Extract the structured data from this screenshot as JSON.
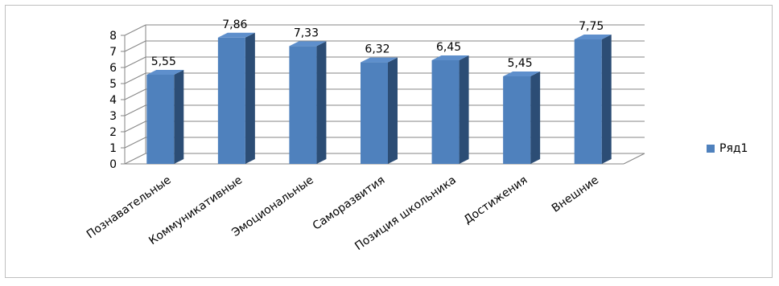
{
  "chart_data": {
    "type": "bar",
    "categories": [
      "Познавательные",
      "Коммуникативные",
      "Эмоциональные",
      "Саморазвития",
      "Позиция школьника",
      "Достижения",
      "Внешние"
    ],
    "series": [
      {
        "name": "Ряд1",
        "values": [
          5.55,
          7.86,
          7.33,
          6.32,
          6.45,
          5.45,
          7.75
        ],
        "labels": [
          "5,55",
          "7,86",
          "7,33",
          "6,32",
          "6,45",
          "5,45",
          "7,75"
        ],
        "color": "#4f81bd"
      }
    ],
    "ylim": [
      0,
      8
    ],
    "yticks": [
      "0",
      "1",
      "2",
      "3",
      "4",
      "5",
      "6",
      "7",
      "8"
    ],
    "grid": true,
    "style": "3d-column",
    "legend": "right"
  }
}
